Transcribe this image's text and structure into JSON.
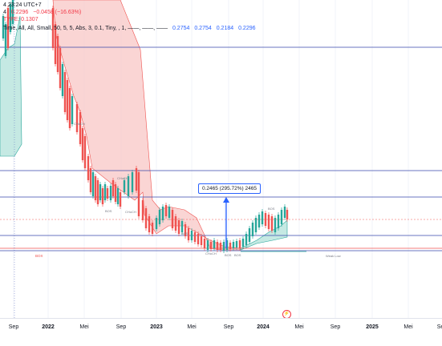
{
  "header": {
    "line1": [
      "4 23:24 UTC+7"
    ],
    "line2": [
      "4",
      "0.2296",
      "−0.0458 (−16.63%)"
    ],
    "line3": [
      "TYPE: 0.1307"
    ],
    "line4": [
      "Time, All, All, Small, 50, 5, 5, Abs, 3, 0.1, Tiny, , 1, ——, ——, ——",
      "0.2754",
      "0.2754",
      "0.2184",
      "0.2296"
    ]
  },
  "chart_labels": {
    "measure": "0.2465 (295.72%) 2465",
    "box_label": "BOX",
    "small_labels": [
      "CHoCH",
      "BOS",
      "CHoCH",
      "CHoCH",
      "BOS",
      "CHoCH",
      "BOS",
      "BOS",
      "BOS",
      "Weak Low"
    ]
  },
  "time_axis": {
    "ticks": [
      {
        "label": "Sep",
        "year": false
      },
      {
        "label": "2022",
        "year": true
      },
      {
        "label": "Mei",
        "year": false
      },
      {
        "label": "Sep",
        "year": false
      },
      {
        "label": "2023",
        "year": true
      },
      {
        "label": "Mei",
        "year": false
      },
      {
        "label": "Sep",
        "year": false
      },
      {
        "label": "2024",
        "year": true
      },
      {
        "label": "Mei",
        "year": false
      },
      {
        "label": "Sep",
        "year": false
      },
      {
        "label": "2025",
        "year": true
      },
      {
        "label": "Mei",
        "year": false
      },
      {
        "label": "Se",
        "year": false
      }
    ]
  },
  "colors": {
    "bull": "#26a69a",
    "bear": "#ef5350",
    "bear_zone": "#f8c7c6",
    "bull_zone": "#b7e4dc",
    "level_line": "#3949ab",
    "box_line": "#ef5350"
  },
  "event_icon": "lightning-icon"
}
